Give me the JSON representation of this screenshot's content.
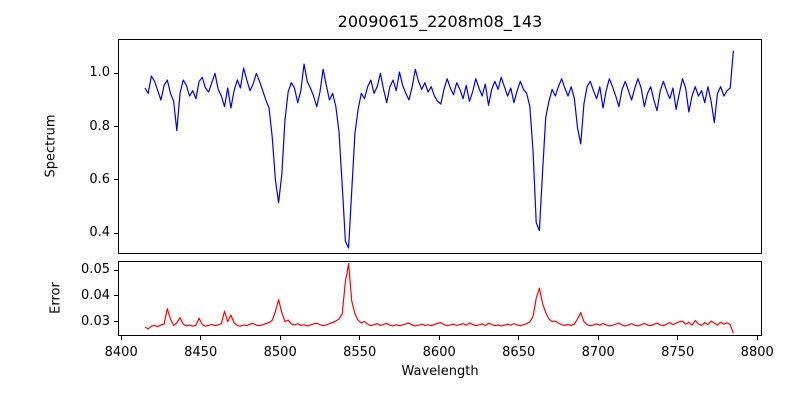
{
  "figure": {
    "title": "20090615_2208m08_143",
    "background": "#ffffff",
    "axis_color": "#000000"
  },
  "chart_data": [
    {
      "type": "line",
      "title": "20090615_2208m08_143",
      "ylabel": "Spectrum",
      "xlabel": "",
      "legend": "none",
      "grid": false,
      "xlim": [
        8398,
        8803
      ],
      "ylim": [
        0.322,
        1.129
      ],
      "ytick_values": [
        0.4,
        0.6,
        0.8,
        1.0
      ],
      "ytick_labels": [
        "0.4",
        "0.6",
        "0.8",
        "1.0"
      ],
      "xtick_values": [
        8400,
        8450,
        8500,
        8550,
        8600,
        8650,
        8700,
        8750,
        8800
      ],
      "xtick_labels_visible": false,
      "series": [
        {
          "name": "spectrum",
          "color": "#0000ee",
          "x_start": 8415,
          "x_step": 2,
          "values": [
            0.945,
            0.925,
            0.99,
            0.97,
            0.935,
            0.9,
            0.955,
            0.975,
            0.925,
            0.895,
            0.785,
            0.925,
            0.975,
            0.955,
            0.915,
            0.935,
            0.905,
            0.97,
            0.985,
            0.945,
            0.93,
            0.965,
            1.0,
            0.94,
            0.915,
            0.875,
            0.945,
            0.87,
            0.935,
            0.975,
            0.945,
            1.02,
            0.975,
            0.935,
            0.96,
            1.0,
            0.97,
            0.935,
            0.9,
            0.87,
            0.76,
            0.6,
            0.515,
            0.62,
            0.825,
            0.93,
            0.965,
            0.945,
            0.89,
            0.935,
            1.035,
            0.97,
            0.945,
            0.915,
            0.875,
            0.93,
            1.015,
            0.955,
            0.9,
            0.925,
            0.875,
            0.78,
            0.58,
            0.37,
            0.345,
            0.56,
            0.775,
            0.865,
            0.925,
            0.905,
            0.95,
            0.975,
            0.925,
            0.95,
            1.0,
            0.94,
            0.89,
            0.95,
            0.975,
            0.935,
            1.005,
            0.955,
            0.925,
            0.9,
            0.95,
            1.015,
            0.97,
            0.94,
            0.965,
            0.93,
            0.95,
            0.915,
            0.895,
            0.885,
            0.94,
            0.98,
            0.945,
            0.92,
            0.965,
            0.94,
            0.905,
            0.955,
            0.895,
            0.93,
            0.98,
            0.945,
            0.915,
            0.96,
            0.88,
            0.94,
            0.97,
            0.94,
            0.985,
            0.95,
            0.915,
            0.945,
            0.89,
            0.935,
            0.97,
            0.94,
            0.925,
            0.875,
            0.71,
            0.44,
            0.41,
            0.63,
            0.835,
            0.895,
            0.94,
            0.915,
            0.95,
            0.98,
            0.945,
            0.915,
            0.95,
            0.905,
            0.795,
            0.735,
            0.885,
            0.95,
            0.97,
            0.935,
            0.905,
            0.95,
            0.87,
            0.935,
            0.98,
            0.95,
            0.915,
            0.875,
            0.94,
            0.97,
            0.935,
            0.9,
            0.945,
            0.98,
            0.945,
            0.875,
            0.925,
            0.95,
            0.9,
            0.86,
            0.935,
            0.97,
            0.935,
            0.905,
            0.945,
            0.865,
            0.925,
            0.98,
            0.945,
            0.855,
            0.915,
            0.95,
            0.915,
            0.935,
            0.89,
            0.95,
            0.895,
            0.815,
            0.925,
            0.95,
            0.915,
            0.935,
            0.945,
            1.085
          ]
        }
      ],
      "features_note": "absorption lines near 8435, 8498, 8542 (deepest ~0.345), 8662, 8688"
    },
    {
      "type": "line",
      "title": "",
      "ylabel": "Error",
      "xlabel": "Wavelength",
      "legend": "none",
      "grid": false,
      "xlim": [
        8398,
        8803
      ],
      "ylim": [
        0.0244,
        0.0535
      ],
      "ytick_values": [
        0.03,
        0.04,
        0.05
      ],
      "ytick_labels": [
        "0.03",
        "0.04",
        "0.05"
      ],
      "xtick_values": [
        8400,
        8450,
        8500,
        8550,
        8600,
        8650,
        8700,
        8750,
        8800
      ],
      "xtick_labels": [
        "8400",
        "8450",
        "8500",
        "8550",
        "8600",
        "8650",
        "8700",
        "8750",
        "8800"
      ],
      "xtick_labels_visible": true,
      "series": [
        {
          "name": "error",
          "color": "#ff0000",
          "x_start": 8415,
          "x_step": 2,
          "values": [
            0.0278,
            0.0272,
            0.0282,
            0.0285,
            0.028,
            0.0287,
            0.029,
            0.035,
            0.031,
            0.0285,
            0.0295,
            0.0315,
            0.029,
            0.0283,
            0.0287,
            0.0282,
            0.0286,
            0.0313,
            0.0288,
            0.0282,
            0.0285,
            0.0289,
            0.0284,
            0.0287,
            0.0292,
            0.034,
            0.03,
            0.0325,
            0.0295,
            0.0285,
            0.0282,
            0.0287,
            0.0284,
            0.029,
            0.0293,
            0.0286,
            0.0284,
            0.0288,
            0.0292,
            0.0296,
            0.0305,
            0.034,
            0.0385,
            0.0335,
            0.03,
            0.0306,
            0.0291,
            0.0287,
            0.0292,
            0.0285,
            0.0288,
            0.0283,
            0.0287,
            0.0291,
            0.0294,
            0.0288,
            0.0284,
            0.0287,
            0.0292,
            0.0296,
            0.0302,
            0.031,
            0.033,
            0.0455,
            0.0525,
            0.038,
            0.033,
            0.0305,
            0.0295,
            0.03,
            0.029,
            0.0284,
            0.0288,
            0.0292,
            0.0285,
            0.0289,
            0.0293,
            0.0286,
            0.0283,
            0.0288,
            0.0284,
            0.0287,
            0.0291,
            0.0294,
            0.0287,
            0.0283,
            0.0286,
            0.029,
            0.0285,
            0.0288,
            0.0284,
            0.0289,
            0.0293,
            0.0296,
            0.0288,
            0.0284,
            0.0287,
            0.029,
            0.0285,
            0.0288,
            0.0292,
            0.0286,
            0.0294,
            0.0289,
            0.0284,
            0.0287,
            0.0291,
            0.0285,
            0.0293,
            0.0289,
            0.0284,
            0.0287,
            0.0283,
            0.0286,
            0.029,
            0.0286,
            0.0292,
            0.0287,
            0.0284,
            0.0288,
            0.0292,
            0.0298,
            0.032,
            0.039,
            0.043,
            0.037,
            0.0335,
            0.031,
            0.03,
            0.0302,
            0.0294,
            0.0288,
            0.0285,
            0.0289,
            0.0285,
            0.029,
            0.031,
            0.0335,
            0.03,
            0.0288,
            0.0284,
            0.0287,
            0.0291,
            0.0286,
            0.0293,
            0.0287,
            0.0283,
            0.0286,
            0.029,
            0.0294,
            0.0286,
            0.0283,
            0.0287,
            0.0292,
            0.0286,
            0.0283,
            0.0288,
            0.0293,
            0.0287,
            0.0284,
            0.0289,
            0.0294,
            0.0287,
            0.0284,
            0.029,
            0.0296,
            0.0288,
            0.0294,
            0.0299,
            0.0302,
            0.029,
            0.0297,
            0.0286,
            0.0304,
            0.0291,
            0.0285,
            0.0296,
            0.0288,
            0.0302,
            0.0294,
            0.0286,
            0.0297,
            0.029,
            0.0295,
            0.0288,
            0.0255
          ]
        }
      ],
      "features_note": "error peaks near 8430, 8465, 8498, 8542 (max ~0.0525), 8662, 8688; final point drops to ~0.0255"
    }
  ]
}
